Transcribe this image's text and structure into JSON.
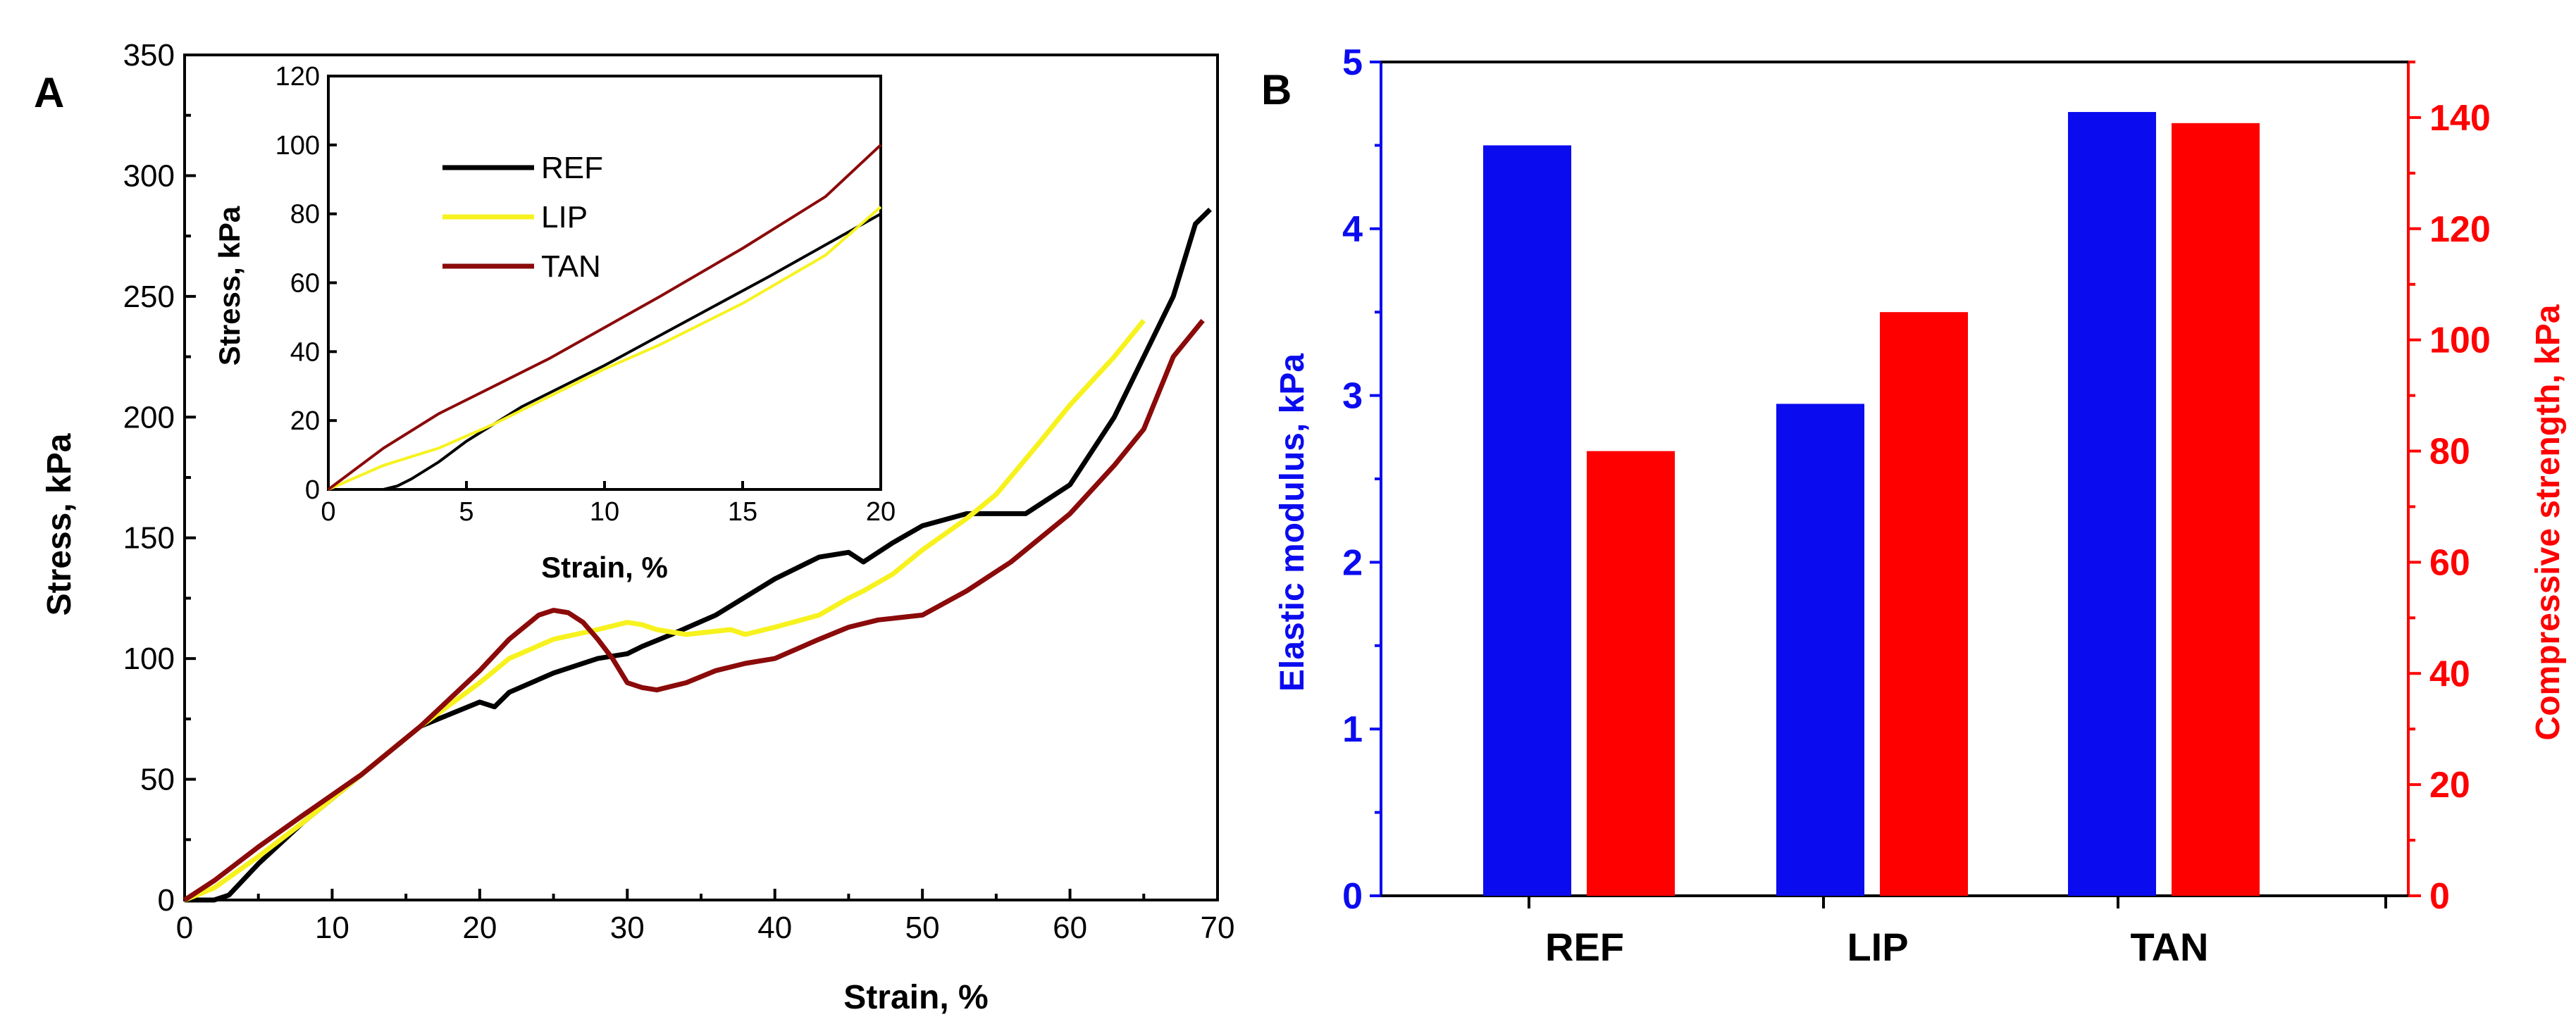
{
  "colors": {
    "REF": "#000000",
    "LIP": "#f7f21e",
    "TAN": "#8b0a0a",
    "blue": "#0b0bf0",
    "red": "#ff0000"
  },
  "chart_data": [
    {
      "panel": "A",
      "type": "line",
      "xlabel": "Strain, %",
      "ylabel": "Stress, kPa",
      "xlim": [
        0,
        70
      ],
      "ylim": [
        0,
        350
      ],
      "xticks": [
        "0",
        "10",
        "20",
        "30",
        "40",
        "50",
        "60",
        "70"
      ],
      "yticks": [
        "0",
        "50",
        "100",
        "150",
        "200",
        "250",
        "300",
        "350"
      ],
      "series": [
        {
          "name": "REF",
          "x": [
            0,
            2,
            3,
            5,
            8,
            12,
            16,
            20,
            21,
            22,
            25,
            28,
            30,
            31,
            33,
            36,
            40,
            43,
            45,
            46,
            48,
            50,
            53,
            57,
            60,
            63,
            65,
            67,
            68.5,
            69.5
          ],
          "y": [
            0,
            0,
            2,
            15,
            32,
            52,
            72,
            82,
            80,
            86,
            94,
            100,
            102,
            105,
            110,
            118,
            133,
            142,
            144,
            140,
            148,
            155,
            160,
            160,
            172,
            200,
            225,
            250,
            280,
            286
          ]
        },
        {
          "name": "LIP",
          "x": [
            0,
            2,
            5,
            8,
            12,
            16,
            20,
            22,
            25,
            28,
            30,
            31,
            32,
            34,
            37,
            38,
            40,
            43,
            45,
            46,
            48,
            50,
            53,
            55,
            58,
            60,
            63,
            65
          ],
          "y": [
            0,
            5,
            18,
            32,
            52,
            72,
            90,
            100,
            108,
            112,
            115,
            114,
            112,
            110,
            112,
            110,
            113,
            118,
            125,
            128,
            135,
            145,
            158,
            168,
            190,
            205,
            225,
            240
          ]
        },
        {
          "name": "TAN",
          "x": [
            0,
            2,
            5,
            8,
            12,
            16,
            20,
            22,
            24,
            25,
            26,
            27,
            28,
            29,
            30,
            31,
            32,
            34,
            36,
            38,
            40,
            43,
            45,
            47,
            50,
            53,
            56,
            60,
            63,
            65,
            67,
            69
          ],
          "y": [
            0,
            8,
            22,
            35,
            52,
            72,
            95,
            108,
            118,
            120,
            119,
            115,
            108,
            100,
            90,
            88,
            87,
            90,
            95,
            98,
            100,
            108,
            113,
            116,
            118,
            128,
            140,
            160,
            180,
            195,
            225,
            240
          ]
        }
      ],
      "legend": [
        "REF",
        "LIP",
        "TAN"
      ],
      "inset": {
        "xlabel": "Strain, %",
        "ylabel": "Stress, kPa",
        "xlim": [
          0,
          20
        ],
        "ylim": [
          0,
          120
        ],
        "xticks": [
          "0",
          "5",
          "10",
          "15",
          "20"
        ],
        "yticks": [
          "0",
          "20",
          "40",
          "60",
          "80",
          "100",
          "120"
        ],
        "series": [
          {
            "name": "REF",
            "x": [
              0,
              2,
              2.5,
              3,
              4,
              5,
              7,
              10,
              13,
              16,
              20
            ],
            "y": [
              0,
              0,
              1,
              3,
              8,
              14,
              24,
              36,
              49,
              62,
              80
            ]
          },
          {
            "name": "LIP",
            "x": [
              0,
              2,
              4,
              6,
              8,
              10,
              12,
              15,
              18,
              20
            ],
            "y": [
              0,
              7,
              12,
              19,
              27,
              35,
              42,
              54,
              68,
              82
            ]
          },
          {
            "name": "TAN",
            "x": [
              0,
              2,
              4,
              6,
              8,
              10,
              12,
              15,
              18,
              20
            ],
            "y": [
              0,
              12,
              22,
              30,
              38,
              47,
              56,
              70,
              85,
              100
            ]
          }
        ]
      }
    },
    {
      "panel": "B",
      "type": "bar",
      "categories": [
        "REF",
        "LIP",
        "TAN"
      ],
      "ylabel": "Elastic modulus, kPa",
      "y2label": "Compressive strength, kPa",
      "ylim": [
        0,
        5
      ],
      "y2lim": [
        0,
        150
      ],
      "yticks": [
        "0",
        "1",
        "2",
        "3",
        "4",
        "5"
      ],
      "y2ticks": [
        "0",
        "20",
        "40",
        "60",
        "80",
        "100",
        "120",
        "140"
      ],
      "series": [
        {
          "name": "Elastic modulus",
          "axis": "left",
          "values": [
            4.5,
            2.95,
            4.7
          ]
        },
        {
          "name": "Compressive strength",
          "axis": "right",
          "values": [
            80,
            105,
            139
          ]
        }
      ]
    }
  ]
}
